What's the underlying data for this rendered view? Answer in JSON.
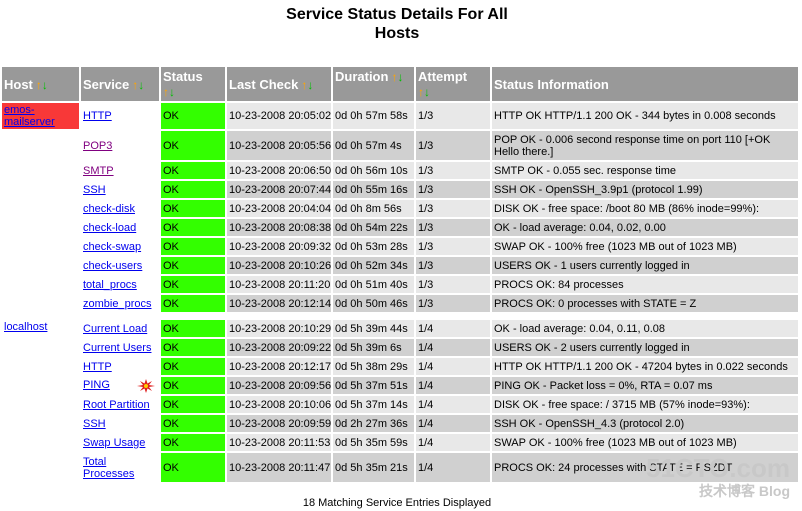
{
  "page": {
    "title_line1": "Service Status Details For All",
    "title_line2": "Hosts",
    "footer": "18 Matching Service Entries Displayed"
  },
  "columns": [
    {
      "label": "Host",
      "up_icon": "↑",
      "down_icon": "↓"
    },
    {
      "label": "Service",
      "up_icon": "↑",
      "down_icon": "↓"
    },
    {
      "label": "Status",
      "up_icon": "↑",
      "down_icon": "↓"
    },
    {
      "label": "Last Check",
      "up_icon": "↑",
      "down_icon": "↓"
    },
    {
      "label": "Duration",
      "up_icon": "↑",
      "down_icon": "↓"
    },
    {
      "label": "Attempt",
      "up_icon": "↑",
      "down_icon": "↓"
    },
    {
      "label": "Status Information"
    }
  ],
  "hosts": [
    {
      "name": "emos-mailserver",
      "state_color": "#f83838",
      "services": [
        {
          "service": "HTTP",
          "status": "OK",
          "last_check": "10-23-2008 20:05:02",
          "duration": "0d 0h 57m 58s",
          "attempt": "1/3",
          "info": "HTTP OK HTTP/1.1 200 OK - 344 bytes in 0.008 seconds"
        },
        {
          "service": "POP3",
          "status": "OK",
          "last_check": "10-23-2008 20:05:56",
          "duration": "0d 0h 57m 4s",
          "attempt": "1/3",
          "info": "POP OK - 0.006 second response time on port 110 [+OK Hello there.]",
          "visited": true,
          "tall": true
        },
        {
          "service": "SMTP",
          "status": "OK",
          "last_check": "10-23-2008 20:06:50",
          "duration": "0d 0h 56m 10s",
          "attempt": "1/3",
          "info": "SMTP OK - 0.055 sec. response time",
          "visited": true
        },
        {
          "service": "SSH",
          "status": "OK",
          "last_check": "10-23-2008 20:07:44",
          "duration": "0d 0h 55m 16s",
          "attempt": "1/3",
          "info": "SSH OK - OpenSSH_3.9p1 (protocol 1.99)"
        },
        {
          "service": "check-disk",
          "status": "OK",
          "last_check": "10-23-2008 20:04:04",
          "duration": "0d 0h 8m 56s",
          "attempt": "1/3",
          "info": "DISK OK - free space: /boot 80 MB (86% inode=99%):"
        },
        {
          "service": "check-load",
          "status": "OK",
          "last_check": "10-23-2008 20:08:38",
          "duration": "0d 0h 54m 22s",
          "attempt": "1/3",
          "info": "OK - load average: 0.04, 0.02, 0.00"
        },
        {
          "service": "check-swap",
          "status": "OK",
          "last_check": "10-23-2008 20:09:32",
          "duration": "0d 0h 53m 28s",
          "attempt": "1/3",
          "info": "SWAP OK - 100% free (1023 MB out of 1023 MB)"
        },
        {
          "service": "check-users",
          "status": "OK",
          "last_check": "10-23-2008 20:10:26",
          "duration": "0d 0h 52m 34s",
          "attempt": "1/3",
          "info": "USERS OK - 1 users currently logged in"
        },
        {
          "service": "total_procs",
          "status": "OK",
          "last_check": "10-23-2008 20:11:20",
          "duration": "0d 0h 51m 40s",
          "attempt": "1/3",
          "info": "PROCS OK: 84 processes"
        },
        {
          "service": "zombie_procs",
          "status": "OK",
          "last_check": "10-23-2008 20:12:14",
          "duration": "0d 0h 50m 46s",
          "attempt": "1/3",
          "info": "PROCS OK: 0 processes with STATE = Z"
        }
      ]
    },
    {
      "name": "localhost",
      "state_color": "#ffffff",
      "services": [
        {
          "service": "Current Load",
          "status": "OK",
          "last_check": "10-23-2008 20:10:29",
          "duration": "0d 5h 39m 44s",
          "attempt": "1/4",
          "info": "OK - load average: 0.04, 0.11, 0.08"
        },
        {
          "service": "Current Users",
          "status": "OK",
          "last_check": "10-23-2008 20:09:22",
          "duration": "0d 5h 39m 6s",
          "attempt": "1/4",
          "info": "USERS OK - 2 users currently logged in"
        },
        {
          "service": "HTTP",
          "status": "OK",
          "last_check": "10-23-2008 20:12:17",
          "duration": "0d 5h 38m 29s",
          "attempt": "1/4",
          "info": "HTTP OK HTTP/1.1 200 OK - 47204 bytes in 0.022 seconds"
        },
        {
          "service": "PING",
          "status": "OK",
          "last_check": "10-23-2008 20:09:56",
          "duration": "0d 5h 37m 51s",
          "attempt": "1/4",
          "info": "PING OK - Packet loss = 0%, RTA = 0.07 ms",
          "flapping_icon": "flapping-burst-icon"
        },
        {
          "service": "Root Partition",
          "status": "OK",
          "last_check": "10-23-2008 20:10:06",
          "duration": "0d 5h 37m 14s",
          "attempt": "1/4",
          "info": "DISK OK - free space: / 3715 MB (57% inode=93%):"
        },
        {
          "service": "SSH",
          "status": "OK",
          "last_check": "10-23-2008 20:09:59",
          "duration": "0d 2h 27m 36s",
          "attempt": "1/4",
          "info": "SSH OK - OpenSSH_4.3 (protocol 2.0)"
        },
        {
          "service": "Swap Usage",
          "status": "OK",
          "last_check": "10-23-2008 20:11:53",
          "duration": "0d 5h 35m 59s",
          "attempt": "1/4",
          "info": "SWAP OK - 100% free (1023 MB out of 1023 MB)"
        },
        {
          "service": "Total Processes",
          "status": "OK",
          "last_check": "10-23-2008 20:11:47",
          "duration": "0d 5h 35m 21s",
          "attempt": "1/4",
          "info": "PROCS OK: 24 processes with STATE = RSZDT",
          "tall": true
        }
      ]
    }
  ],
  "watermark": {
    "line1": "51CTO.com",
    "line2": "技术博客",
    "line3": "Blog"
  },
  "colors": {
    "ok": "#33ff00",
    "header_bg": "#999999",
    "host_down": "#f83838"
  }
}
